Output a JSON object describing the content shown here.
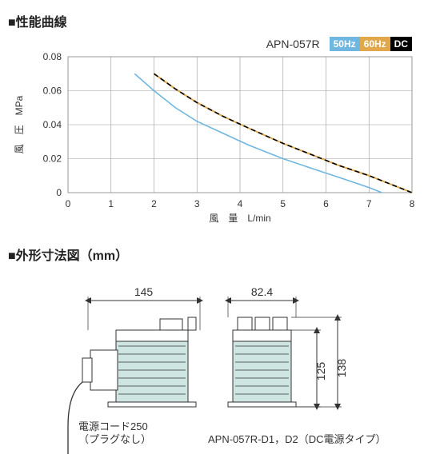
{
  "section1_title": "■性能曲線",
  "section2_title": "■外形寸法図（mm）",
  "chart": {
    "type": "line",
    "model_label": "APN-057R",
    "badges": [
      {
        "label": "50Hz",
        "bg": "#6fb7e0",
        "fg": "#ffffff"
      },
      {
        "label": "60Hz",
        "bg": "#e0a84b",
        "fg": "#ffffff"
      },
      {
        "label": "DC",
        "bg": "#000000",
        "fg": "#ffffff"
      }
    ],
    "y_axis_label": "風　圧　MPa",
    "x_axis_label": "風　量　L/min",
    "xlim": [
      0,
      8
    ],
    "ylim": [
      0,
      0.08
    ],
    "xtick_step": 1,
    "ytick_step": 0.02,
    "y_decimals": 2,
    "background_color": "#ffffff",
    "grid_color": "#999999",
    "axis_label_fontsize": 12,
    "tick_fontsize": 12,
    "title_color": "#333333",
    "series": [
      {
        "name": "50Hz",
        "color": "#6fb7e0",
        "width": 1.6,
        "dash": "",
        "points": [
          [
            1.55,
            0.07
          ],
          [
            2,
            0.06
          ],
          [
            2.5,
            0.05
          ],
          [
            3,
            0.042
          ],
          [
            3.6,
            0.035
          ],
          [
            4.2,
            0.028
          ],
          [
            5,
            0.02
          ],
          [
            5.7,
            0.014
          ],
          [
            6.3,
            0.009
          ],
          [
            7,
            0.003
          ],
          [
            7.3,
            0.0
          ]
        ]
      },
      {
        "name": "60Hz",
        "color": "#e0a84b",
        "width": 2.0,
        "dash": "",
        "points": [
          [
            2,
            0.07
          ],
          [
            2.5,
            0.061
          ],
          [
            3,
            0.053
          ],
          [
            3.6,
            0.045
          ],
          [
            4.2,
            0.038
          ],
          [
            5,
            0.029
          ],
          [
            5.7,
            0.022
          ],
          [
            6.3,
            0.016
          ],
          [
            7,
            0.01
          ],
          [
            7.5,
            0.005
          ],
          [
            8,
            0.0
          ]
        ]
      },
      {
        "name": "DC",
        "color": "#000000",
        "width": 1.6,
        "dash": "6 4",
        "points": [
          [
            2,
            0.07
          ],
          [
            2.5,
            0.061
          ],
          [
            3,
            0.053
          ],
          [
            3.6,
            0.045
          ],
          [
            4.2,
            0.038
          ],
          [
            5,
            0.029
          ],
          [
            5.7,
            0.022
          ],
          [
            6.3,
            0.016
          ],
          [
            7,
            0.01
          ],
          [
            7.5,
            0.005
          ],
          [
            8,
            0.0
          ]
        ]
      }
    ]
  },
  "dims": {
    "top1": "145",
    "top2": "82.4",
    "right1": "125",
    "right2": "138",
    "cord_label1": "電源コード250",
    "cord_label2": "（プラグなし）",
    "model_text": "APN-057R-D1，D2（DC電源タイプ）",
    "body_fill": "#cfe5e2",
    "line_color": "#333333",
    "text_color": "#333333",
    "dim_fontsize": 14,
    "label_fontsize": 13
  }
}
